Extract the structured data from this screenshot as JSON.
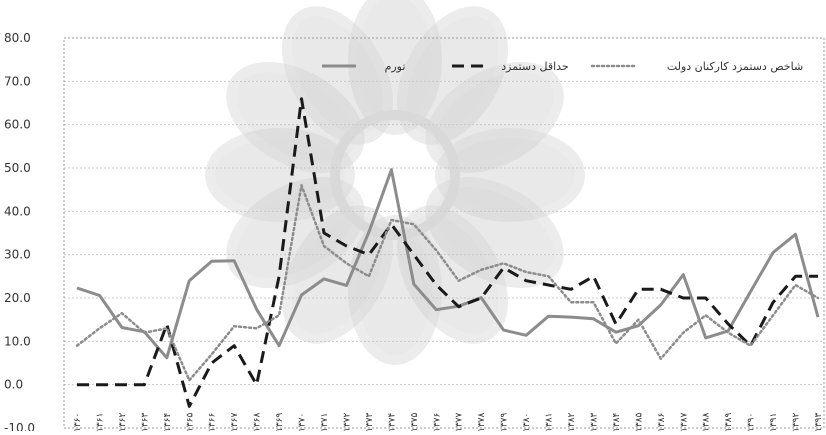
{
  "chart_data": {
    "type": "line",
    "title": "",
    "xlabel": "",
    "ylabel": "",
    "ylim": [
      -10,
      80
    ],
    "yticks": [
      "80.0",
      "70.0",
      "60.0",
      "50.0",
      "40.0",
      "30.0",
      "20.0",
      "10.0",
      "0.0",
      "-10.0"
    ],
    "ytick_values": [
      80,
      70,
      60,
      50,
      40,
      30,
      20,
      10,
      0,
      -10
    ],
    "grid": true,
    "legend_position": "top",
    "categories": [
      "۱۳۶۰",
      "۱۳۶۱",
      "۱۳۶۲",
      "۱۳۶۳",
      "۱۳۶۴",
      "۱۳۶۵",
      "۱۳۶۶",
      "۱۳۶۷",
      "۱۳۶۸",
      "۱۳۶۹",
      "۱۳۷۰",
      "۱۳۷۱",
      "۱۳۷۲",
      "۱۳۷۳",
      "۱۳۷۴",
      "۱۳۷۵",
      "۱۳۷۶",
      "۱۳۷۷",
      "۱۳۷۸",
      "۱۳۷۹",
      "۱۳۸۰",
      "۱۳۸۱",
      "۱۳۸۲",
      "۱۳۸۳",
      "۱۳۸۴",
      "۱۳۸۵",
      "۱۳۸۶",
      "۱۳۸۷",
      "۱۳۸۸",
      "۱۳۸۹",
      "۱۳۹۰",
      "۱۳۹۱",
      "۱۳۹۲",
      "۱۳۹۳"
    ],
    "series": [
      {
        "name": "تورم",
        "style": "solid",
        "color": "#8c8c8c",
        "values": [
          22.3,
          20.6,
          13.2,
          12.2,
          6.2,
          24.0,
          28.5,
          28.6,
          17.4,
          9.0,
          20.7,
          24.4,
          22.9,
          35.2,
          49.6,
          23.2,
          17.3,
          18.1,
          20.1,
          12.6,
          11.4,
          15.8,
          15.6,
          15.2,
          12.1,
          13.6,
          18.4,
          25.4,
          10.8,
          12.4,
          21.5,
          30.5,
          34.7,
          15.6
        ]
      },
      {
        "name": "حداقل دستمزد",
        "style": "dashed",
        "color": "#1a1a1a",
        "values": [
          0,
          0,
          0,
          0,
          13.9,
          -5.0,
          5.0,
          9.0,
          0.0,
          25.0,
          66.0,
          35.0,
          32.0,
          30.0,
          37.0,
          30.0,
          23.0,
          18.0,
          20.0,
          27.0,
          24.0,
          23.0,
          22.0,
          25.0,
          14.0,
          22.0,
          22.0,
          20.0,
          20.0,
          14.0,
          9.0,
          19.0,
          25.0,
          25.0
        ]
      },
      {
        "name": "شاخص دستمزد کارکنان دولت",
        "style": "dotted",
        "color": "#8c8c8c",
        "values": [
          9.0,
          13.0,
          16.5,
          12.0,
          13.0,
          1.0,
          7.0,
          13.5,
          13.0,
          16.0,
          46.0,
          32.0,
          28.0,
          25.0,
          38.0,
          37.0,
          31.0,
          24.0,
          26.5,
          28.0,
          26.0,
          25.0,
          19.0,
          19.0,
          9.5,
          15.0,
          6.0,
          12.0,
          16.0,
          12.0,
          9.0,
          16.0,
          23.0,
          20.0
        ]
      }
    ]
  }
}
